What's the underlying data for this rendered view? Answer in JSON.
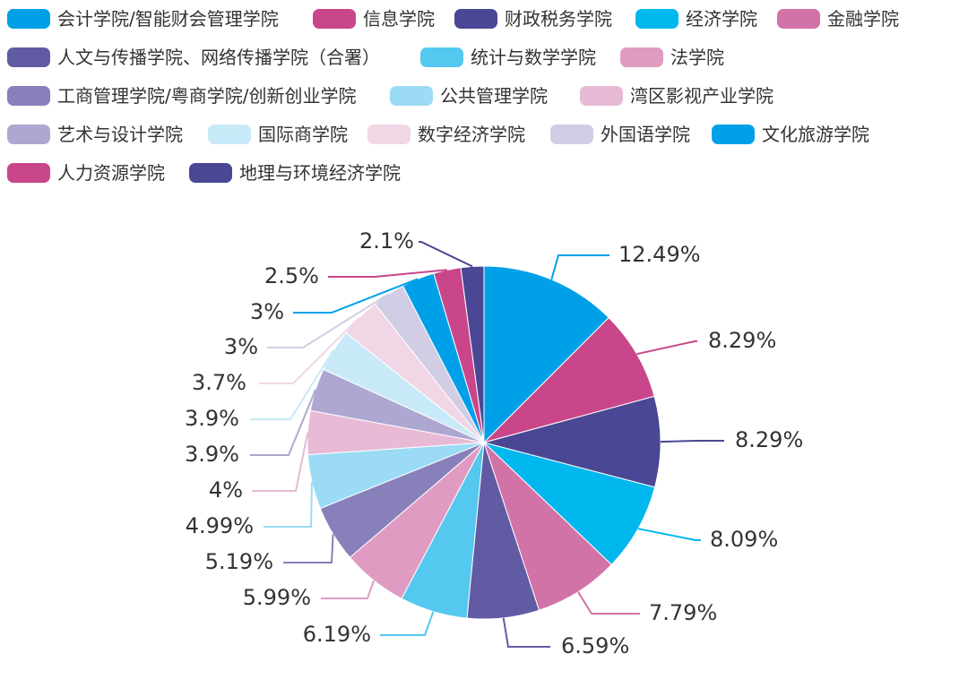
{
  "chart_data": {
    "type": "pie",
    "categories": [
      "会计学院/智能财会管理学院",
      "信息学院",
      "财政税务学院",
      "经济学院",
      "金融学院",
      "人文与传播学院、网络传播学院（合署）",
      "统计与数学学院",
      "法学院",
      "工商管理学院/粤商学院/创新创业学院",
      "公共管理学院",
      "湾区影视产业学院",
      "艺术与设计学院",
      "国际商学院",
      "数字经济学院",
      "外国语学院",
      "文化旅游学院",
      "人力资源学院",
      "地理与环境经济学院"
    ],
    "values": [
      12.49,
      8.29,
      8.29,
      8.09,
      7.79,
      6.59,
      6.19,
      5.99,
      5.19,
      4.99,
      4.0,
      3.9,
      3.9,
      3.7,
      3.0,
      3.0,
      2.5,
      2.1
    ],
    "labels": [
      "12.49%",
      "8.29%",
      "8.29%",
      "8.09%",
      "7.79%",
      "6.59%",
      "6.19%",
      "5.99%",
      "5.19%",
      "4.99%",
      "4%",
      "3.9%",
      "3.9%",
      "3.7%",
      "3%",
      "3%",
      "2.5%",
      "2.1%"
    ],
    "colors": [
      "#00A0E9",
      "#C9468B",
      "#4A4794",
      "#00B7EE",
      "#D273A8",
      "#615BA3",
      "#55C8F0",
      "#DF9BC2",
      "#8880BA",
      "#9BDBF5",
      "#E8BAD5",
      "#ADA7D1",
      "#C8EAF8",
      "#F1D6E6",
      "#D1CDE5",
      "#00A0E9",
      "#C9468B",
      "#4A4794"
    ],
    "legend_position": "top"
  }
}
